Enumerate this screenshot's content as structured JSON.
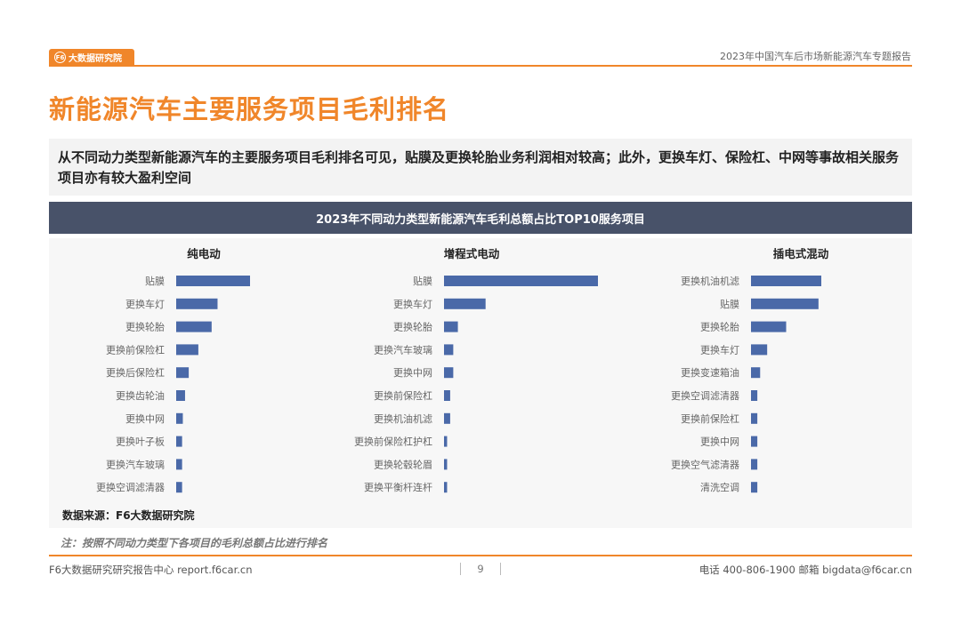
{
  "header": {
    "logo_mark": "F6",
    "logo_text": "大数据研究院",
    "report_title": "2023年中国汽车后市场新能源汽车专题报告"
  },
  "page_title": "新能源汽车主要服务项目毛利排名",
  "summary": "从不同动力类型新能源汽车的主要服务项目毛利排名可见，贴膜及更换轮胎业务利润相对较高；此外，更换车灯、保险杠、中网等事故相关服务项目亦有较大盈利空间",
  "chart_title": "2023年不同动力类型新能源汽车毛利总额占比TOP10服务项目",
  "source": "数据来源：F6大数据研究院",
  "note": "注：按照不同动力类型下各项目的毛利总额占比进行排名",
  "footer": {
    "left": "F6大数据研究研究报告中心 report.f6car.cn",
    "page": "9",
    "right": "电话 400-806-1900  邮箱 bigdata@f6car.cn"
  },
  "colors": {
    "accent": "#f0862a",
    "bar": "#4a69a8",
    "header_bg": "#485269"
  },
  "chart_data": [
    {
      "type": "bar",
      "title": "纯电动",
      "categories": [
        "贴膜",
        "更换车灯",
        "更换轮胎",
        "更换前保险杠",
        "更换后保险杠",
        "更换齿轮油",
        "更换中网",
        "更换叶子板",
        "更换汽车玻璃",
        "更换空调滤清器"
      ],
      "values": [
        100,
        56,
        48,
        30,
        17,
        12,
        9,
        8,
        8,
        8
      ]
    },
    {
      "type": "bar",
      "title": "增程式电动",
      "categories": [
        "贴膜",
        "更换车灯",
        "更换轮胎",
        "更换汽车玻璃",
        "更换中网",
        "更换前保险杠",
        "更换机油机滤",
        "更换前保险杠护杠",
        "更换轮毂轮眉",
        "更换平衡杆连杆"
      ],
      "values": [
        100,
        27,
        9,
        6,
        6,
        4,
        4,
        2,
        2,
        2
      ]
    },
    {
      "type": "bar",
      "title": "插电式混动",
      "categories": [
        "更换机油机滤",
        "贴膜",
        "更换轮胎",
        "更换车灯",
        "更换变速箱油",
        "更换空调滤清器",
        "更换前保险杠",
        "更换中网",
        "更换空气滤清器",
        "清洗空调"
      ],
      "values": [
        100,
        96,
        50,
        23,
        13,
        9,
        9,
        9,
        9,
        9
      ]
    }
  ]
}
